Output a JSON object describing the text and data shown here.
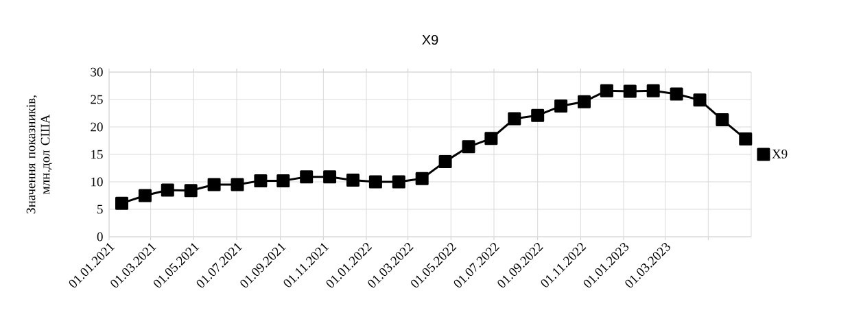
{
  "chart_data": {
    "type": "line",
    "title": "X9",
    "ylabel": "Значення показників, млн.дол США",
    "x": [
      "2021-01-19",
      "2021-02-21",
      "2021-03-25",
      "2021-04-27",
      "2021-05-30",
      "2021-07-02",
      "2021-08-04",
      "2021-09-05",
      "2021-10-08",
      "2021-11-10",
      "2021-12-13",
      "2022-01-14",
      "2022-02-16",
      "2022-03-21",
      "2022-04-23",
      "2022-05-26",
      "2022-06-27",
      "2022-07-30",
      "2022-09-01",
      "2022-10-04",
      "2022-11-06",
      "2022-12-08",
      "2023-01-10",
      "2023-02-12",
      "2023-03-17",
      "2023-04-19",
      "2023-05-21",
      "2023-06-23"
    ],
    "series": [
      {
        "name": "X9",
        "color": "#000000",
        "values": [
          6.1,
          7.5,
          8.5,
          8.4,
          9.5,
          9.5,
          10.2,
          10.2,
          10.9,
          10.9,
          10.3,
          10.0,
          10.0,
          10.6,
          13.7,
          16.4,
          17.9,
          21.5,
          22.1,
          23.8,
          24.6,
          26.6,
          26.5,
          26.6,
          26.0,
          24.9,
          21.3,
          17.8
        ]
      }
    ],
    "xlim": [
      "2021-01-01",
      "2023-07-01"
    ],
    "xticks": [
      {
        "value": "2021-01-01",
        "label": "01.01.2021"
      },
      {
        "value": "2021-03-01",
        "label": "01.03.2021"
      },
      {
        "value": "2021-05-01",
        "label": "01.05.2021"
      },
      {
        "value": "2021-07-01",
        "label": "01.07.2021"
      },
      {
        "value": "2021-09-01",
        "label": "01.09.2021"
      },
      {
        "value": "2021-11-01",
        "label": "01.11.2021"
      },
      {
        "value": "2022-01-01",
        "label": "01.01.2022"
      },
      {
        "value": "2022-03-01",
        "label": "01.03.2022"
      },
      {
        "value": "2022-05-01",
        "label": "01.05.2022"
      },
      {
        "value": "2022-07-01",
        "label": "01.07.2022"
      },
      {
        "value": "2022-09-01",
        "label": "01.09.2022"
      },
      {
        "value": "2022-11-01",
        "label": "01.11.2022"
      },
      {
        "value": "2023-01-01",
        "label": "01.01.2023"
      },
      {
        "value": "2023-03-01",
        "label": "01.03.2023"
      },
      {
        "value": "2023-05-01",
        "label": null
      }
    ],
    "ylim": [
      0,
      30
    ],
    "yticks": [
      0,
      5,
      10,
      15,
      20,
      25,
      30
    ],
    "grid": true,
    "legend": "right",
    "marker": "square",
    "line_style": "solid"
  }
}
